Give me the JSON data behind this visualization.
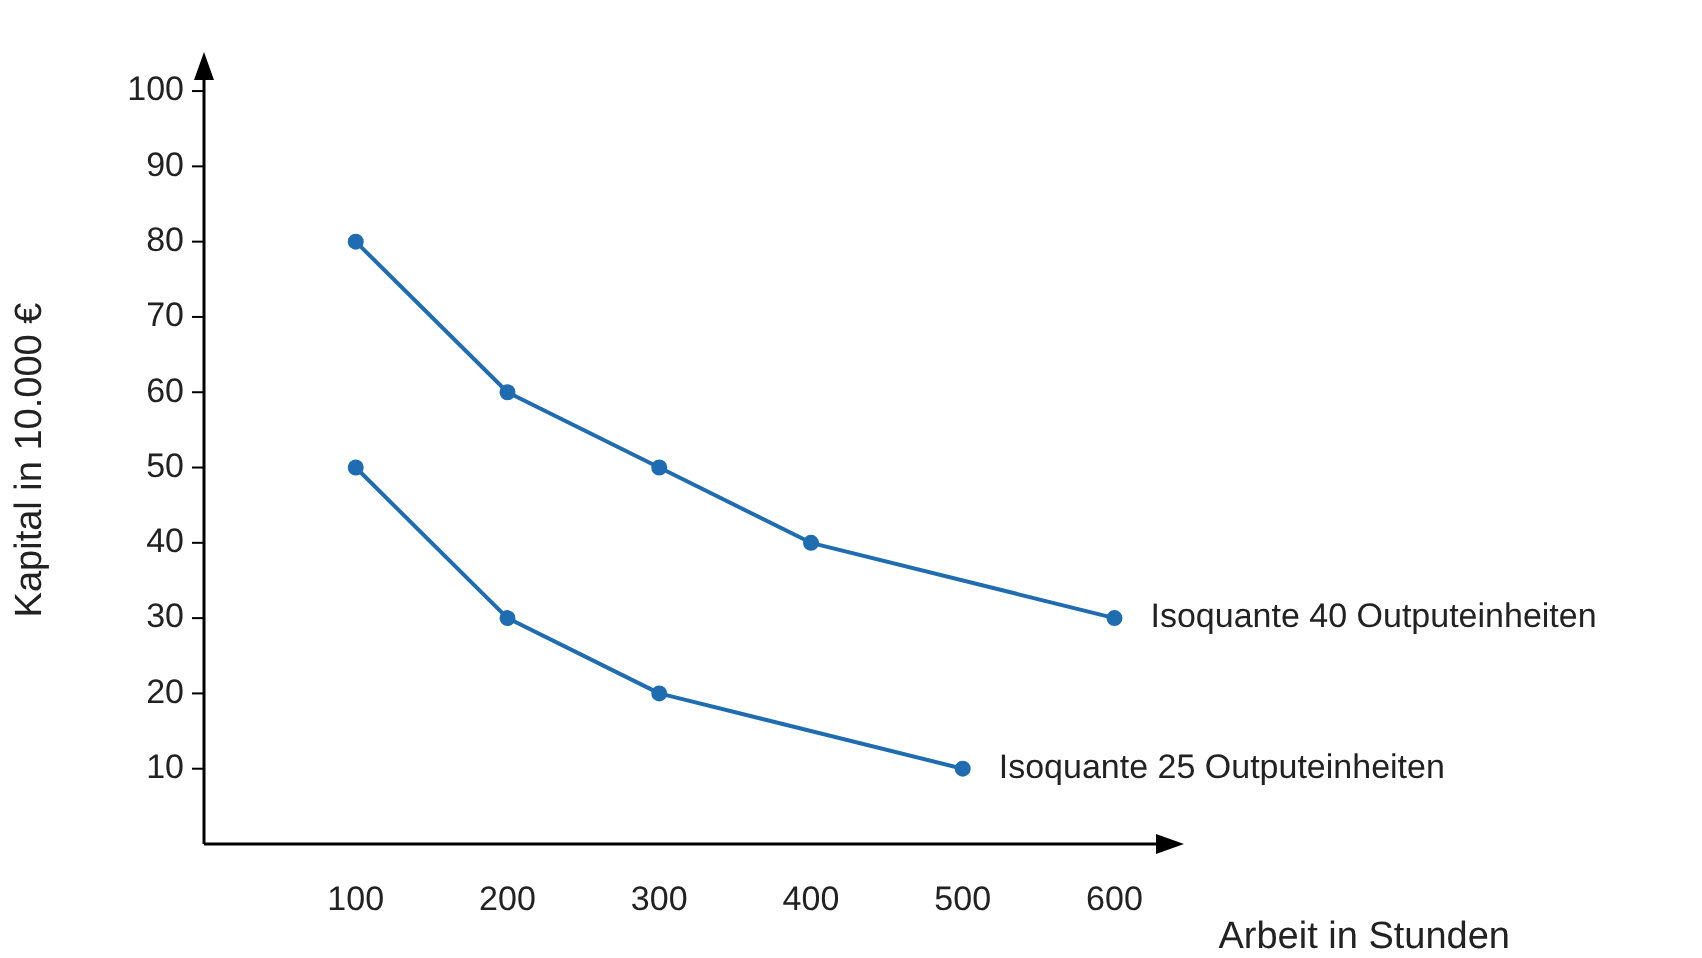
{
  "chart_data": {
    "type": "line",
    "xlabel": "Arbeit in Stunden",
    "ylabel": "Kapital in 10.000 €",
    "xlim": [
      0,
      630
    ],
    "xticks": [
      100,
      200,
      300,
      400,
      500,
      600
    ],
    "ylim": [
      0,
      102
    ],
    "yticks": [
      10,
      20,
      30,
      40,
      50,
      60,
      70,
      80,
      90,
      100
    ],
    "grid": false,
    "legend": false,
    "marker": "circle",
    "line_style": "solid",
    "series": [
      {
        "name": "Isoquante 40 Outputeinheiten",
        "color": "#1f6cb0",
        "x": [
          100,
          200,
          300,
          400,
          600
        ],
        "values": [
          80,
          60,
          50,
          40,
          30
        ]
      },
      {
        "name": "Isoquante 25 Outputeinheiten",
        "color": "#1f6cb0",
        "x": [
          100,
          200,
          300,
          500
        ],
        "values": [
          50,
          30,
          20,
          10
        ]
      }
    ]
  }
}
